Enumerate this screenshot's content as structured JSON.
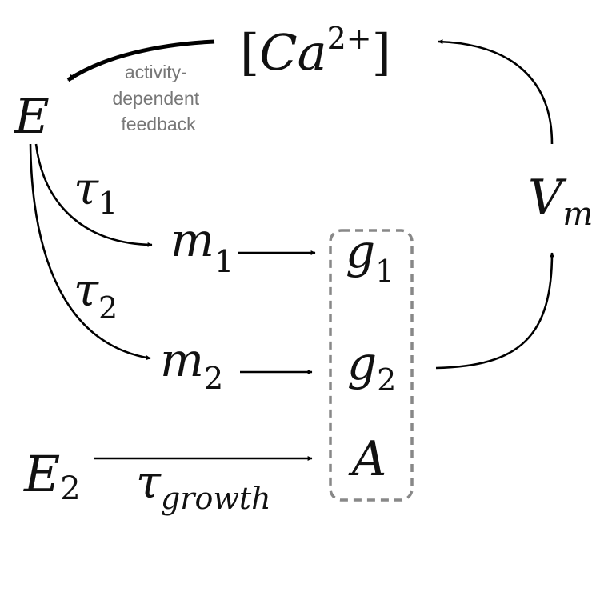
{
  "nodes": {
    "calcium": {
      "open": "[",
      "base": "Ca",
      "sup": "2+",
      "close": "]"
    },
    "E": {
      "base": "E"
    },
    "Vm": {
      "base": "V",
      "sub": "m"
    },
    "m1": {
      "base": "m",
      "sub": "1"
    },
    "m2": {
      "base": "m",
      "sub": "2"
    },
    "g1": {
      "base": "g",
      "sub": "1"
    },
    "g2": {
      "base": "g",
      "sub": "2"
    },
    "A": {
      "base": "A"
    },
    "E2": {
      "base": "E",
      "sub": "2"
    }
  },
  "edge_labels": {
    "tau1": {
      "base": "τ",
      "sub": "1"
    },
    "tau2": {
      "base": "τ",
      "sub": "2"
    },
    "tau_growth": {
      "base": "τ",
      "sub": "growth"
    }
  },
  "annotation": {
    "feedback_lines": [
      "activity-",
      "dependent",
      "feedback"
    ]
  },
  "colors": {
    "ink": "#111111",
    "annotation": "#777777",
    "dashed_box": "#888888"
  }
}
